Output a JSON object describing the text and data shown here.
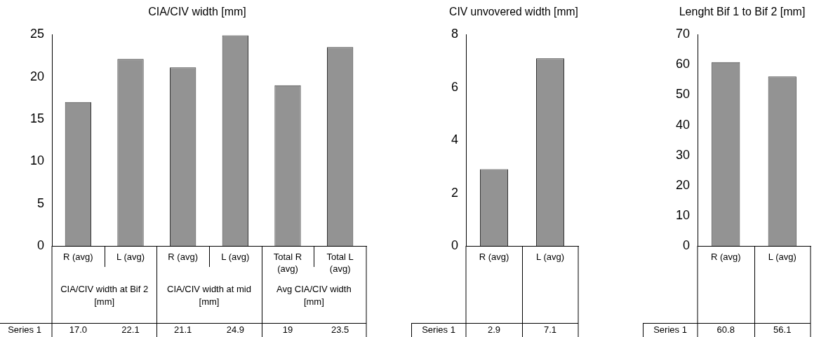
{
  "chart_data": [
    {
      "type": "bar",
      "title": "CIA/CIV width [mm]",
      "categories": [
        "R (avg)",
        "L (avg)",
        "R (avg)",
        "L (avg)",
        "Total R (avg)",
        "Total L (avg)"
      ],
      "annotations": [
        "CIA/CIV width at Bif 2 [mm]",
        "CIA/CIV width at mid [mm]",
        "Avg CIA/CIV width [mm]"
      ],
      "series": [
        {
          "name": "Series 1",
          "color": "#939393",
          "values": [
            17.0,
            22.1,
            21.1,
            24.9,
            19,
            23.5
          ],
          "value_labels": [
            "17.0",
            "22.1",
            "21.1",
            "24.9",
            "19",
            "23.5"
          ]
        }
      ],
      "ylim": [
        0,
        25
      ],
      "yticks": [
        0,
        5,
        10,
        15,
        20,
        25
      ],
      "grid": false,
      "legend": false
    },
    {
      "type": "bar",
      "title": "CIV unvovered width [mm]",
      "categories": [
        "R (avg)",
        "L (avg)"
      ],
      "series": [
        {
          "name": "Series 1",
          "color": "#939393",
          "values": [
            2.9,
            7.1
          ],
          "value_labels": [
            "2.9",
            "7.1"
          ]
        }
      ],
      "ylim": [
        0,
        8
      ],
      "yticks": [
        0,
        2,
        4,
        6,
        8
      ],
      "grid": false,
      "legend": false
    },
    {
      "type": "bar",
      "title": "Lenght Bif 1 to Bif 2 [mm]",
      "categories": [
        "R (avg)",
        "L (avg)"
      ],
      "series": [
        {
          "name": "Series 1",
          "color": "#939393",
          "values": [
            60.8,
            56.1
          ],
          "value_labels": [
            "60.8",
            "56.1"
          ]
        }
      ],
      "ylim": [
        0,
        70
      ],
      "yticks": [
        0,
        10,
        20,
        30,
        40,
        50,
        60,
        70
      ],
      "grid": false,
      "legend": false
    }
  ]
}
